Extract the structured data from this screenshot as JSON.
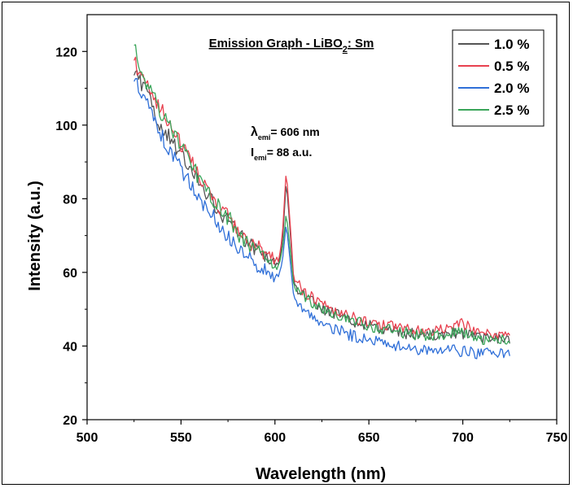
{
  "chart_data": {
    "type": "line",
    "title": "Emission Graph - LiBO2: Sm",
    "title_parts": {
      "main": "Emission Graph - LiBO",
      "sub": "2",
      "tail": ": Sm"
    },
    "xlabel": "Wavelength (nm)",
    "ylabel": "Intensity (a.u.)",
    "xlim": [
      500,
      750
    ],
    "ylim": [
      20,
      130
    ],
    "xticks": [
      500,
      550,
      600,
      650,
      700,
      750
    ],
    "yticks": [
      20,
      40,
      60,
      80,
      100,
      120
    ],
    "grid": false,
    "legend_position": "top-right",
    "annotation": {
      "line1_symbol": "λ",
      "line1_sub": "emi",
      "line1_text": "= 606 nm",
      "line2_symbol": "I",
      "line2_sub": "emi",
      "line2_text": "= 88 a.u."
    },
    "series": [
      {
        "name": "1.0 %",
        "color": "#555555",
        "points": [
          [
            525,
            114
          ],
          [
            530,
            110
          ],
          [
            535,
            105
          ],
          [
            540,
            99
          ],
          [
            545,
            96
          ],
          [
            550,
            92
          ],
          [
            555,
            88
          ],
          [
            560,
            84
          ],
          [
            565,
            80
          ],
          [
            570,
            77
          ],
          [
            575,
            74
          ],
          [
            580,
            71
          ],
          [
            585,
            68
          ],
          [
            590,
            66
          ],
          [
            595,
            64
          ],
          [
            600,
            62
          ],
          [
            602,
            62
          ],
          [
            604,
            68
          ],
          [
            606,
            85
          ],
          [
            608,
            72
          ],
          [
            610,
            57
          ],
          [
            615,
            54
          ],
          [
            620,
            52
          ],
          [
            630,
            49
          ],
          [
            640,
            47
          ],
          [
            650,
            45.5
          ],
          [
            660,
            44.5
          ],
          [
            670,
            43.5
          ],
          [
            680,
            43
          ],
          [
            690,
            43
          ],
          [
            700,
            43.5
          ],
          [
            710,
            42
          ],
          [
            720,
            42
          ],
          [
            725,
            41
          ]
        ]
      },
      {
        "name": "0.5 %",
        "color": "#e8414f",
        "points": [
          [
            525,
            117
          ],
          [
            530,
            112
          ],
          [
            535,
            108
          ],
          [
            540,
            104
          ],
          [
            545,
            99
          ],
          [
            550,
            95
          ],
          [
            555,
            90
          ],
          [
            560,
            86
          ],
          [
            565,
            82
          ],
          [
            570,
            78
          ],
          [
            575,
            75
          ],
          [
            580,
            72
          ],
          [
            585,
            69
          ],
          [
            590,
            67
          ],
          [
            595,
            65
          ],
          [
            600,
            63
          ],
          [
            602,
            63
          ],
          [
            604,
            70
          ],
          [
            606,
            88
          ],
          [
            608,
            74
          ],
          [
            610,
            58
          ],
          [
            615,
            55
          ],
          [
            620,
            53
          ],
          [
            630,
            50
          ],
          [
            640,
            48
          ],
          [
            650,
            46.5
          ],
          [
            660,
            45.5
          ],
          [
            670,
            44.5
          ],
          [
            680,
            44
          ],
          [
            690,
            45
          ],
          [
            700,
            46
          ],
          [
            710,
            43
          ],
          [
            720,
            43
          ],
          [
            725,
            42
          ]
        ]
      },
      {
        "name": "2.0 %",
        "color": "#2f6fd8",
        "points": [
          [
            525,
            113
          ],
          [
            530,
            108
          ],
          [
            535,
            102
          ],
          [
            540,
            97
          ],
          [
            545,
            92
          ],
          [
            550,
            88
          ],
          [
            555,
            84
          ],
          [
            560,
            80
          ],
          [
            565,
            77
          ],
          [
            570,
            73
          ],
          [
            575,
            70
          ],
          [
            580,
            67
          ],
          [
            585,
            64
          ],
          [
            590,
            62
          ],
          [
            595,
            60
          ],
          [
            600,
            59
          ],
          [
            602,
            59
          ],
          [
            604,
            63
          ],
          [
            606,
            73
          ],
          [
            608,
            64
          ],
          [
            610,
            53
          ],
          [
            615,
            50
          ],
          [
            620,
            48
          ],
          [
            630,
            45
          ],
          [
            640,
            43
          ],
          [
            650,
            41.5
          ],
          [
            660,
            40.5
          ],
          [
            670,
            39.5
          ],
          [
            680,
            39
          ],
          [
            690,
            39
          ],
          [
            700,
            38.5
          ],
          [
            710,
            38
          ],
          [
            720,
            38
          ],
          [
            725,
            38
          ]
        ]
      },
      {
        "name": "2.5 %",
        "color": "#3aa55a",
        "points": [
          [
            525,
            123
          ],
          [
            530,
            113
          ],
          [
            535,
            108
          ],
          [
            540,
            103
          ],
          [
            545,
            99
          ],
          [
            550,
            95
          ],
          [
            555,
            90
          ],
          [
            560,
            85
          ],
          [
            565,
            81
          ],
          [
            570,
            78
          ],
          [
            575,
            75
          ],
          [
            580,
            71
          ],
          [
            585,
            68
          ],
          [
            590,
            66
          ],
          [
            595,
            64
          ],
          [
            600,
            62
          ],
          [
            602,
            62
          ],
          [
            604,
            66
          ],
          [
            606,
            76
          ],
          [
            608,
            67
          ],
          [
            610,
            56
          ],
          [
            615,
            54
          ],
          [
            620,
            52
          ],
          [
            630,
            49
          ],
          [
            640,
            47
          ],
          [
            650,
            45.5
          ],
          [
            660,
            44.5
          ],
          [
            670,
            43.5
          ],
          [
            680,
            43
          ],
          [
            690,
            43
          ],
          [
            700,
            44
          ],
          [
            710,
            42
          ],
          [
            720,
            42
          ],
          [
            725,
            42
          ]
        ]
      }
    ]
  }
}
